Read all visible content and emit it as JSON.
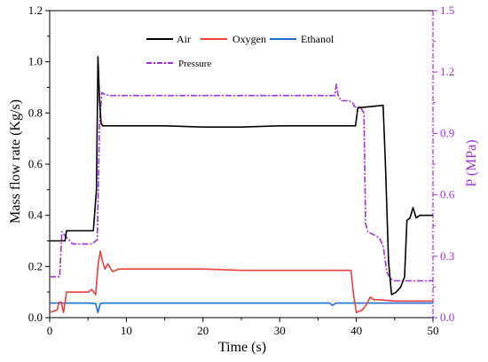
{
  "chart_data": {
    "type": "line",
    "xlabel": "Time (s)",
    "ylabel": "Mass flow rate (Kg/s)",
    "y2label": "P (MPa)",
    "xlim": [
      0,
      50
    ],
    "ylim": [
      0,
      1.2
    ],
    "y2lim": [
      0,
      1.5
    ],
    "xticks": [
      "0",
      "10",
      "20",
      "30",
      "40",
      "50"
    ],
    "yticks": [
      "0.0",
      "0.2",
      "0.4",
      "0.6",
      "0.8",
      "1.0",
      "1.2"
    ],
    "y2ticks": [
      "0.0",
      "0.3",
      "0.6",
      "0.9",
      "1.2",
      "1.5"
    ],
    "legend": {
      "placement": "top-center",
      "entries": [
        "Air",
        "Oxygen",
        "Ethanol",
        "Pressure"
      ]
    },
    "colors": {
      "Air": "#000000",
      "Oxygen": "#e8403c",
      "Ethanol": "#1f6fd1",
      "Pressure": "#9b30e0",
      "right_axis": "#9b30e0"
    },
    "series": [
      {
        "name": "Air",
        "axis": "left",
        "x": [
          0,
          2,
          2.2,
          5.5,
          5.7,
          6.1,
          6.3,
          6.5,
          6.7,
          6.9,
          7.5,
          10,
          15,
          20,
          25,
          30,
          35,
          39.9,
          40.2,
          43.5,
          43.8,
          44.2,
          44.6,
          45.2,
          45.8,
          46.3,
          46.6,
          47.0,
          47.4,
          47.8,
          48.3,
          50
        ],
        "y": [
          0.3,
          0.3,
          0.34,
          0.34,
          0.34,
          0.5,
          1.02,
          0.85,
          0.76,
          0.75,
          0.75,
          0.75,
          0.75,
          0.745,
          0.745,
          0.75,
          0.75,
          0.75,
          0.82,
          0.83,
          0.6,
          0.22,
          0.09,
          0.1,
          0.12,
          0.16,
          0.38,
          0.39,
          0.43,
          0.39,
          0.4,
          0.4
        ]
      },
      {
        "name": "Oxygen",
        "axis": "left",
        "x": [
          0,
          1.0,
          1.2,
          1.5,
          1.8,
          2.0,
          2.2,
          3.0,
          4.0,
          5.0,
          5.5,
          6.0,
          6.3,
          6.6,
          6.9,
          7.2,
          7.6,
          8.2,
          9.0,
          10,
          15,
          20,
          25,
          30,
          35,
          39.3,
          39.6,
          40.0,
          40.8,
          41.3,
          41.8,
          42.3,
          43,
          45,
          50
        ],
        "y": [
          0.02,
          0.03,
          0.06,
          0.06,
          0.02,
          0.06,
          0.1,
          0.1,
          0.1,
          0.1,
          0.11,
          0.09,
          0.2,
          0.26,
          0.22,
          0.19,
          0.21,
          0.18,
          0.19,
          0.19,
          0.19,
          0.19,
          0.185,
          0.185,
          0.185,
          0.185,
          0.1,
          0.02,
          0.03,
          0.05,
          0.08,
          0.07,
          0.07,
          0.065,
          0.065
        ]
      },
      {
        "name": "Ethanol",
        "axis": "left",
        "x": [
          0,
          5,
          6.0,
          6.3,
          6.6,
          7.0,
          10,
          20,
          30,
          36.5,
          36.9,
          37.3,
          38,
          45,
          50
        ],
        "y": [
          0.057,
          0.057,
          0.055,
          0.02,
          0.055,
          0.057,
          0.057,
          0.057,
          0.057,
          0.057,
          0.048,
          0.057,
          0.057,
          0.057,
          0.057
        ]
      },
      {
        "name": "Pressure",
        "axis": "right",
        "x": [
          0,
          1.3,
          1.6,
          2.0,
          3.0,
          4.5,
          5.5,
          6.2,
          6.5,
          6.8,
          7.2,
          8.0,
          15,
          25,
          35,
          37.2,
          37.4,
          37.6,
          38,
          39,
          39.5,
          39.8,
          40.5,
          41,
          41.2,
          41.5,
          42,
          43,
          43.5,
          44,
          44.5,
          45,
          50
        ],
        "y": [
          0.2,
          0.2,
          0.42,
          0.4,
          0.36,
          0.36,
          0.36,
          0.38,
          0.95,
          1.1,
          1.09,
          1.085,
          1.085,
          1.085,
          1.085,
          1.085,
          1.14,
          1.09,
          1.06,
          1.06,
          1.05,
          1.03,
          1.03,
          1.0,
          0.46,
          0.42,
          0.41,
          0.39,
          0.35,
          0.22,
          0.19,
          0.18,
          0.18
        ]
      }
    ]
  }
}
